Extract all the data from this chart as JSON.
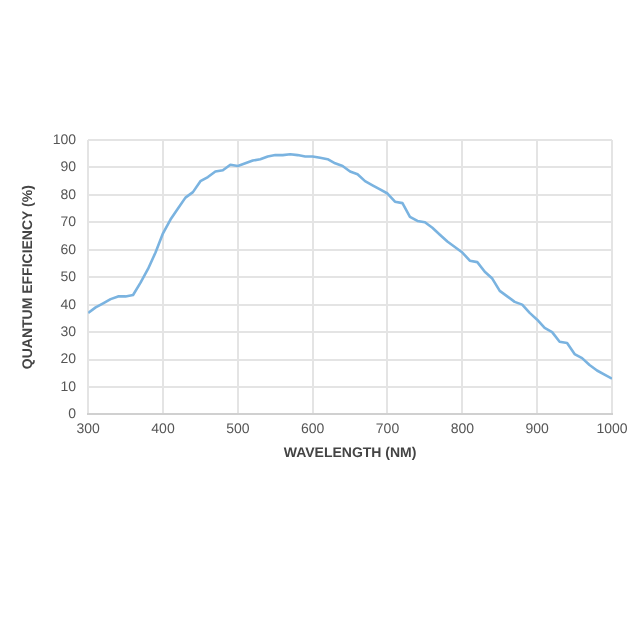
{
  "chart_data": {
    "type": "line",
    "xlabel": "WAVELENGTH (NM)",
    "ylabel": "QUANTUM EFFICIENCY (%)",
    "xlim": [
      300,
      1000
    ],
    "xticks": [
      300,
      400,
      500,
      600,
      700,
      800,
      900,
      1000
    ],
    "ylim": [
      0,
      100
    ],
    "yticks": [
      0,
      10,
      20,
      30,
      40,
      50,
      60,
      70,
      80,
      90,
      100
    ],
    "grid": true,
    "legend": false,
    "marker": "none",
    "line_style": "solid",
    "series": [
      {
        "color": "#7ab3e0",
        "x": [
          300,
          310,
          320,
          330,
          340,
          350,
          360,
          370,
          380,
          390,
          400,
          410,
          420,
          430,
          440,
          450,
          460,
          470,
          480,
          490,
          500,
          510,
          520,
          530,
          540,
          550,
          560,
          570,
          580,
          590,
          600,
          610,
          620,
          630,
          640,
          650,
          660,
          670,
          680,
          690,
          700,
          710,
          720,
          730,
          740,
          750,
          760,
          770,
          780,
          790,
          800,
          810,
          820,
          830,
          840,
          850,
          860,
          870,
          880,
          890,
          900,
          910,
          920,
          930,
          940,
          950,
          960,
          970,
          980,
          990,
          1000
        ],
        "values": [
          37,
          39,
          40.5,
          42,
          43,
          43,
          43.5,
          48,
          53,
          59,
          66,
          71,
          75,
          79,
          81,
          85,
          86.5,
          88.5,
          89,
          91,
          90.5,
          91.5,
          92.5,
          93,
          94,
          94.5,
          94.5,
          94.8,
          94.5,
          94,
          94,
          93.5,
          93,
          91.5,
          90.5,
          88.5,
          87.5,
          85,
          83.5,
          82,
          80.5,
          77.5,
          77,
          72,
          70.5,
          70,
          68,
          65.5,
          63,
          61,
          59,
          56,
          55.5,
          52,
          49.5,
          45,
          43,
          41,
          40,
          37,
          34.5,
          31.5,
          30,
          26.5,
          26,
          22,
          20.5,
          18,
          16,
          14.5,
          13
        ]
      }
    ]
  }
}
